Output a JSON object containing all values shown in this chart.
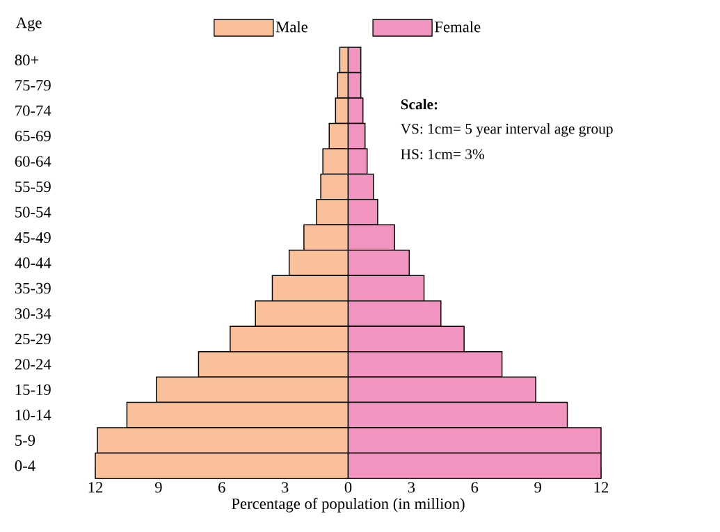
{
  "chart_data": {
    "type": "bar",
    "orientation": "horizontal",
    "ylabel": "Age",
    "xlabel": "Percentage of population (in million)",
    "categories": [
      "80+",
      "75-79",
      "70-74",
      "65-69",
      "60-64",
      "55-59",
      "50-54",
      "45-49",
      "40-44",
      "35-39",
      "30-34",
      "25-29",
      "20-24",
      "15-19",
      "10-14",
      "5-9",
      "0-4"
    ],
    "series": [
      {
        "name": "Male",
        "color": "#f9c09a",
        "values": [
          -0.4,
          -0.5,
          -0.6,
          -0.9,
          -1.2,
          -1.3,
          -1.5,
          -2.1,
          -2.8,
          -3.6,
          -4.4,
          -5.6,
          -7.1,
          -9.1,
          -10.5,
          -11.9,
          -12.0
        ]
      },
      {
        "name": "Female",
        "color": "#f195c0",
        "values": [
          0.6,
          0.6,
          0.7,
          0.8,
          0.9,
          1.2,
          1.4,
          2.2,
          2.9,
          3.6,
          4.4,
          5.5,
          7.3,
          8.9,
          10.4,
          12.0,
          12.0
        ]
      }
    ],
    "xlim": [
      -12,
      12
    ],
    "xticks": [
      {
        "value": -12,
        "label": "12"
      },
      {
        "value": -9,
        "label": "9"
      },
      {
        "value": -6,
        "label": "6"
      },
      {
        "value": -3,
        "label": "3"
      },
      0,
      3,
      6,
      9,
      12
    ],
    "legend": "top",
    "stacked": true,
    "annotations": [
      "Scale:",
      "VS: 1cm= 5 year interval age group",
      "HS: 1cm= 3%"
    ]
  }
}
